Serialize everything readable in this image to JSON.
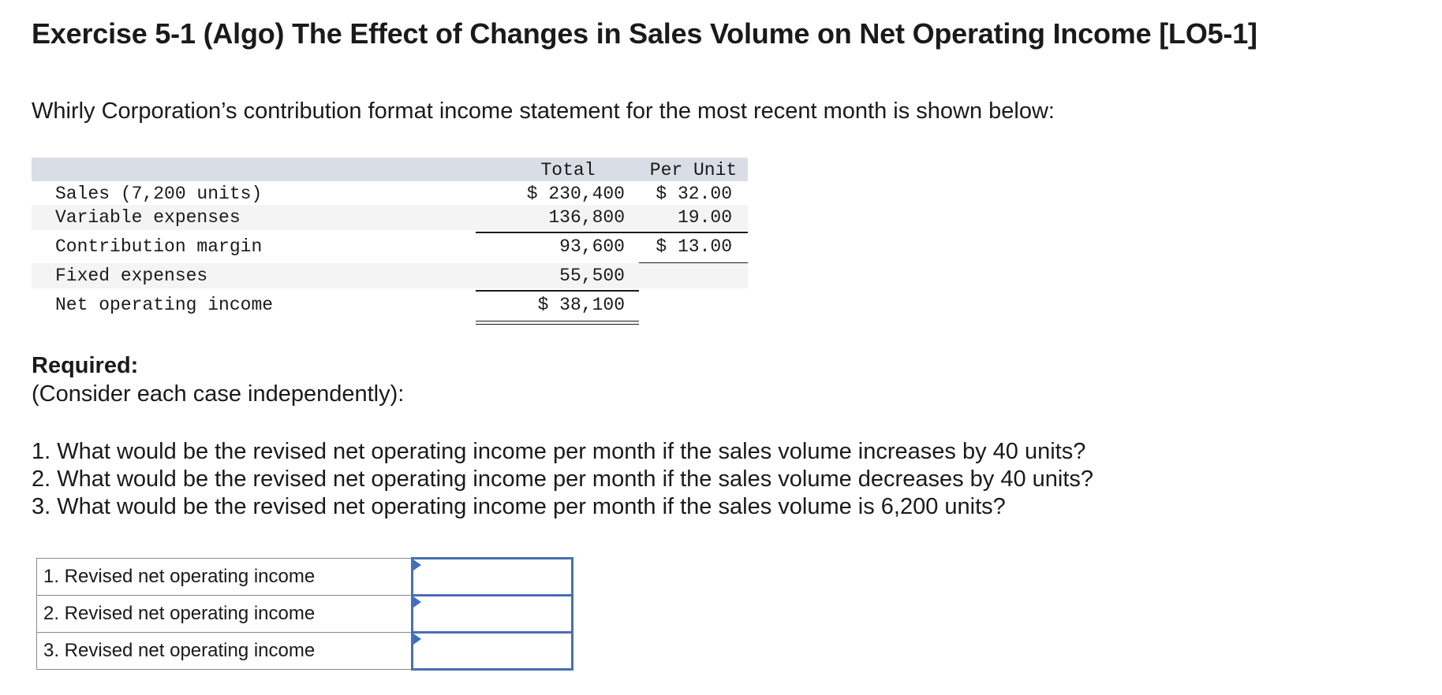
{
  "title": "Exercise 5-1 (Algo) The Effect of Changes in Sales Volume on Net Operating Income [LO5-1]",
  "intro": "Whirly Corporation’s contribution format income statement for the most recent month is shown below:",
  "statement": {
    "headers": {
      "total": "Total",
      "per_unit": "Per Unit"
    },
    "rows": [
      {
        "label": "Sales (7,200 units)",
        "total": "$ 230,400",
        "per_unit": "$ 32.00"
      },
      {
        "label": "Variable expenses",
        "total": "136,800",
        "per_unit": "19.00"
      },
      {
        "label": "Contribution margin",
        "total": "93,600",
        "per_unit": "$ 13.00"
      },
      {
        "label": "Fixed expenses",
        "total": "55,500",
        "per_unit": ""
      },
      {
        "label": "Net operating income",
        "total": "$ 38,100",
        "per_unit": ""
      }
    ]
  },
  "required": {
    "heading": "Required:",
    "note": "(Consider each case independently):",
    "questions": [
      "1. What would be the revised net operating income per month if the sales volume increases by 40 units?",
      "2. What would be the revised net operating income per month if the sales volume decreases by 40 units?",
      "3. What would be the revised net operating income per month if the sales volume is 6,200 units?"
    ]
  },
  "answers": [
    {
      "label": "1. Revised net operating income",
      "value": ""
    },
    {
      "label": "2. Revised net operating income",
      "value": ""
    },
    {
      "label": "3. Revised net operating income",
      "value": ""
    }
  ],
  "colors": {
    "input_border": "#4a6fb0",
    "header_band": "#d9dde6",
    "stripe": "#f4f4f4"
  }
}
